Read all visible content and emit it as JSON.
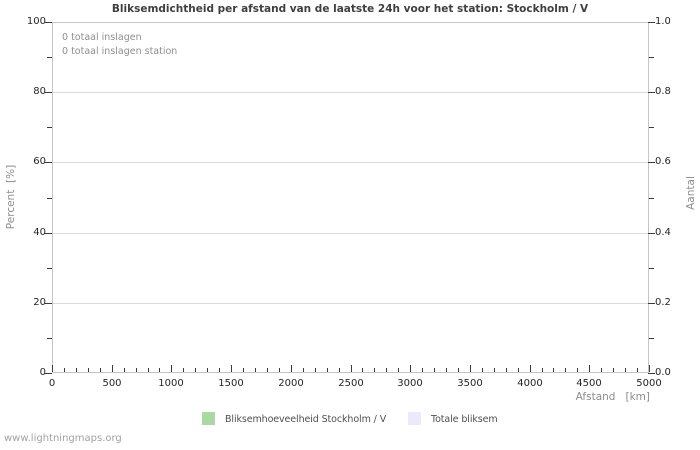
{
  "watermark": "www.lightningmaps.org",
  "chart": {
    "title": "Bliksemdichtheid per afstand van de laatste 24h voor het station: Stockholm / V",
    "annotations": [
      "0 totaal inslagen",
      "0 totaal inslagen station"
    ],
    "axes": {
      "left": {
        "label": "Percent  [%]",
        "ticks": [
          "100",
          "80",
          "60",
          "40",
          "20",
          "0"
        ]
      },
      "right": {
        "label": "Aantal",
        "ticks": [
          "1.0",
          "0.8",
          "0.6",
          "0.4",
          "0.2",
          "0.0"
        ]
      },
      "bottom": {
        "label": "Afstand   [km]",
        "ticks": [
          "0",
          "500",
          "1000",
          "1500",
          "2000",
          "2500",
          "3000",
          "3500",
          "4000",
          "4500",
          "5000"
        ]
      }
    },
    "legend": [
      {
        "label": "Bliksemhoeveelheid Stockholm / V",
        "color": "#abd7a3"
      },
      {
        "label": "Totale bliksem",
        "color": "#eaeafb"
      }
    ],
    "colors": {
      "grid": "#dadada",
      "plot_border": "#c6c6c6",
      "tick": "#3a3a3a",
      "muted_text": "#8f8f8f"
    }
  },
  "chart_data": {
    "type": "bar",
    "title": "Bliksemdichtheid per afstand van de laatste 24h voor het station: Stockholm / V",
    "xlabel": "Afstand [km]",
    "ylabel": "Percent [%]",
    "ylabel_right": "Aantal",
    "xlim": [
      0,
      5000
    ],
    "x_tick_step": 500,
    "x_minor_tick_step": 100,
    "ylim": [
      0,
      100
    ],
    "ylim_right": [
      0.0,
      1.0
    ],
    "grid": "horizontal-major",
    "legend_position": "bottom",
    "series": [
      {
        "name": "Bliksemhoeveelheid Stockholm / V",
        "axis": "left",
        "color": "#abd7a3",
        "values": []
      },
      {
        "name": "Totale bliksem",
        "axis": "right",
        "color": "#eaeafb",
        "values": []
      }
    ],
    "annotations": [
      "0 totaal inslagen",
      "0 totaal inslagen station"
    ],
    "note": "empty chart: zero lightning strikes recorded, no bars drawn"
  }
}
